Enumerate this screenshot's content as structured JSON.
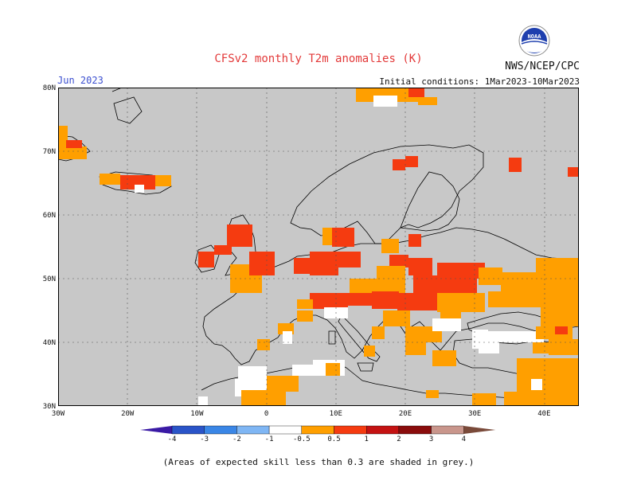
{
  "header": {
    "title": "CFSv2 monthly T2m anomalies (K)",
    "agency": "NWS/NCEP/CPC",
    "valid_month": "Jun 2023",
    "initial_conditions": "Initial conditions: 1Mar2023-10Mar2023",
    "logo_text": "NOAA"
  },
  "axes": {
    "lat_labels": [
      "80N",
      "70N",
      "60N",
      "50N",
      "40N",
      "30N"
    ],
    "lon_labels": [
      "30W",
      "20W",
      "10W",
      "0",
      "10E",
      "20E",
      "30E",
      "40E"
    ]
  },
  "legend": {
    "ticks": [
      "-4",
      "-3",
      "-2",
      "-1",
      "-0.5",
      "0.5",
      "1",
      "2",
      "3",
      "4"
    ],
    "colors": [
      "#3a1aa5",
      "#2a54c8",
      "#3a86e6",
      "#7fb6f4",
      "#ffffff",
      "#ff9f00",
      "#f53b10",
      "#c41212",
      "#8a0c0c",
      "#c9968c",
      "#7a4a3a"
    ]
  },
  "footnote": "(Areas of expected skill less than 0.3 are shaded in grey.)",
  "map_colors": {
    "background": "#c8c8c8",
    "land_grey": "#c0c0c0",
    "anomaly_0_5_to_1": "#ff9f00",
    "anomaly_1_to_2": "#f53b10",
    "no_skill_white": "#ffffff"
  }
}
